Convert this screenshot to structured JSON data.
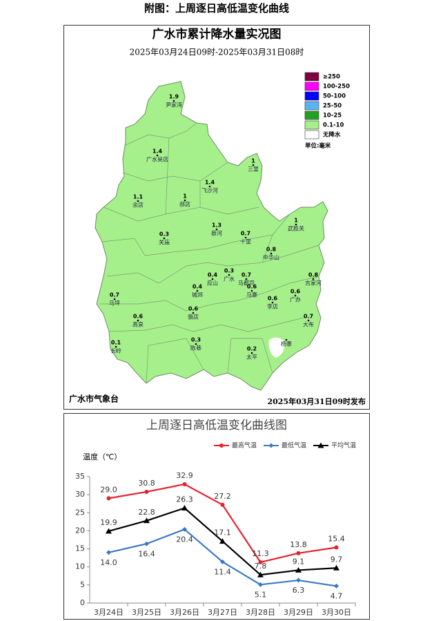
{
  "caption": "附图：上周逐日高低温变化曲线",
  "map": {
    "title": "广水市累计降水量实况图",
    "subtitle": "2025年03月24日09时-2025年03月31日08时",
    "legend": {
      "items": [
        {
          "label": "≥250",
          "color": "#800040"
        },
        {
          "label": "100-250",
          "color": "#ff00ff"
        },
        {
          "label": "50-100",
          "color": "#0000ff"
        },
        {
          "label": "25-50",
          "color": "#5ab4f0"
        },
        {
          "label": "10-25",
          "color": "#22a022"
        },
        {
          "label": "0.1-10",
          "color": "#a6f08c"
        },
        {
          "label": "无降水",
          "color": "#ffffff"
        }
      ],
      "unit": "单位:毫米"
    },
    "stations": [
      {
        "name": "尹家湾",
        "value": 1.9
      },
      {
        "name": "广水吴店",
        "value": 1.4
      },
      {
        "name": "三里",
        "value": 1
      },
      {
        "name": "飞沙河",
        "value": 1.4
      },
      {
        "name": "余店",
        "value": 1.1
      },
      {
        "name": "郝店",
        "value": 1
      },
      {
        "name": "蔡河",
        "value": 1.3
      },
      {
        "name": "关庙",
        "value": 0.3
      },
      {
        "name": "十里",
        "value": 0.7
      },
      {
        "name": "武胜关",
        "value": 1
      },
      {
        "name": "中华山",
        "value": 0.8
      },
      {
        "name": "吉家河",
        "value": 0.8
      },
      {
        "name": "应山",
        "value": 0.4
      },
      {
        "name": "广水",
        "value": 0.3
      },
      {
        "name": "马都司",
        "value": 0.7
      },
      {
        "name": "城郊",
        "value": 0.4
      },
      {
        "name": "马寨",
        "value": 0.6
      },
      {
        "name": "马坪",
        "value": 0.7
      },
      {
        "name": "李店",
        "value": 0.6
      },
      {
        "name": "广办",
        "value": 0.6
      },
      {
        "name": "骆店",
        "value": 0.6
      },
      {
        "name": "大布",
        "value": 0.7
      },
      {
        "name": "高泉",
        "value": 0.6
      },
      {
        "name": "杨寨"
      },
      {
        "name": "陈巷",
        "value": 0.3
      },
      {
        "name": "长岭",
        "value": 0.1
      },
      {
        "name": "太平",
        "value": 0.2
      }
    ],
    "footer_left": "广水市气象台",
    "footer_right": "2025年03月31日09时发布"
  },
  "chart_data": {
    "type": "line",
    "title": "上周逐日高低温变化曲线图",
    "y_label": "温度（℃）",
    "categories": [
      "3月24日",
      "3月25日",
      "3月26日",
      "3月27日",
      "3月28日",
      "3月29日",
      "3月30日"
    ],
    "series": [
      {
        "name": "最高气温",
        "color": "#e8202a",
        "marker": "circle",
        "values": [
          29.0,
          30.8,
          32.9,
          27.2,
          11.3,
          13.8,
          15.4
        ],
        "value_labels": [
          "29.0",
          "30.8",
          "32.9",
          "27.2",
          "11.3",
          "13.8",
          "15.4"
        ]
      },
      {
        "name": "最低气温",
        "color": "#3a78c4",
        "marker": "diamond",
        "values": [
          14.0,
          16.4,
          20.4,
          11.4,
          5.1,
          6.3,
          4.7
        ],
        "value_labels": [
          "14.0",
          "16.4",
          "20.4",
          "11.4",
          "5.1",
          "6.3",
          "4.7"
        ]
      },
      {
        "name": "平均气温",
        "color": "#000000",
        "marker": "triangle",
        "values": [
          19.9,
          22.8,
          26.3,
          17.1,
          7.8,
          9.1,
          9.7
        ],
        "value_labels": [
          "19.9",
          "22.8",
          "26.3",
          "17.1",
          "7.8",
          "9.1",
          "9.7"
        ]
      }
    ],
    "ylim": [
      0,
      35
    ],
    "yticks": [
      0,
      5,
      10,
      15,
      20,
      25,
      30,
      35
    ],
    "grid": false,
    "legend": "top-right"
  }
}
